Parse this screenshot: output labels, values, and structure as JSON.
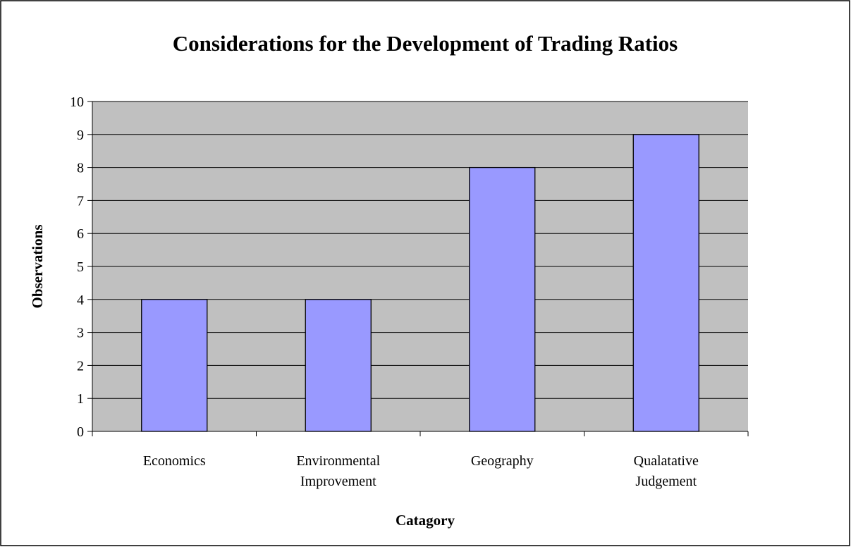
{
  "chart_data": {
    "type": "bar",
    "title": "Considerations for the Development of Trading Ratios",
    "x_label": "Catagory",
    "y_label": "Observations",
    "categories": [
      "Economics",
      "Environmental Improvement",
      "Geography",
      "Qualatative Judgement"
    ],
    "values": [
      4,
      4,
      8,
      9
    ],
    "color": "#9999ff",
    "plot_background": "#c0c0c0",
    "ylim": [
      0,
      10
    ],
    "yticks": [
      0,
      1,
      2,
      3,
      4,
      5,
      6,
      7,
      8,
      9,
      10
    ],
    "grid": true
  }
}
